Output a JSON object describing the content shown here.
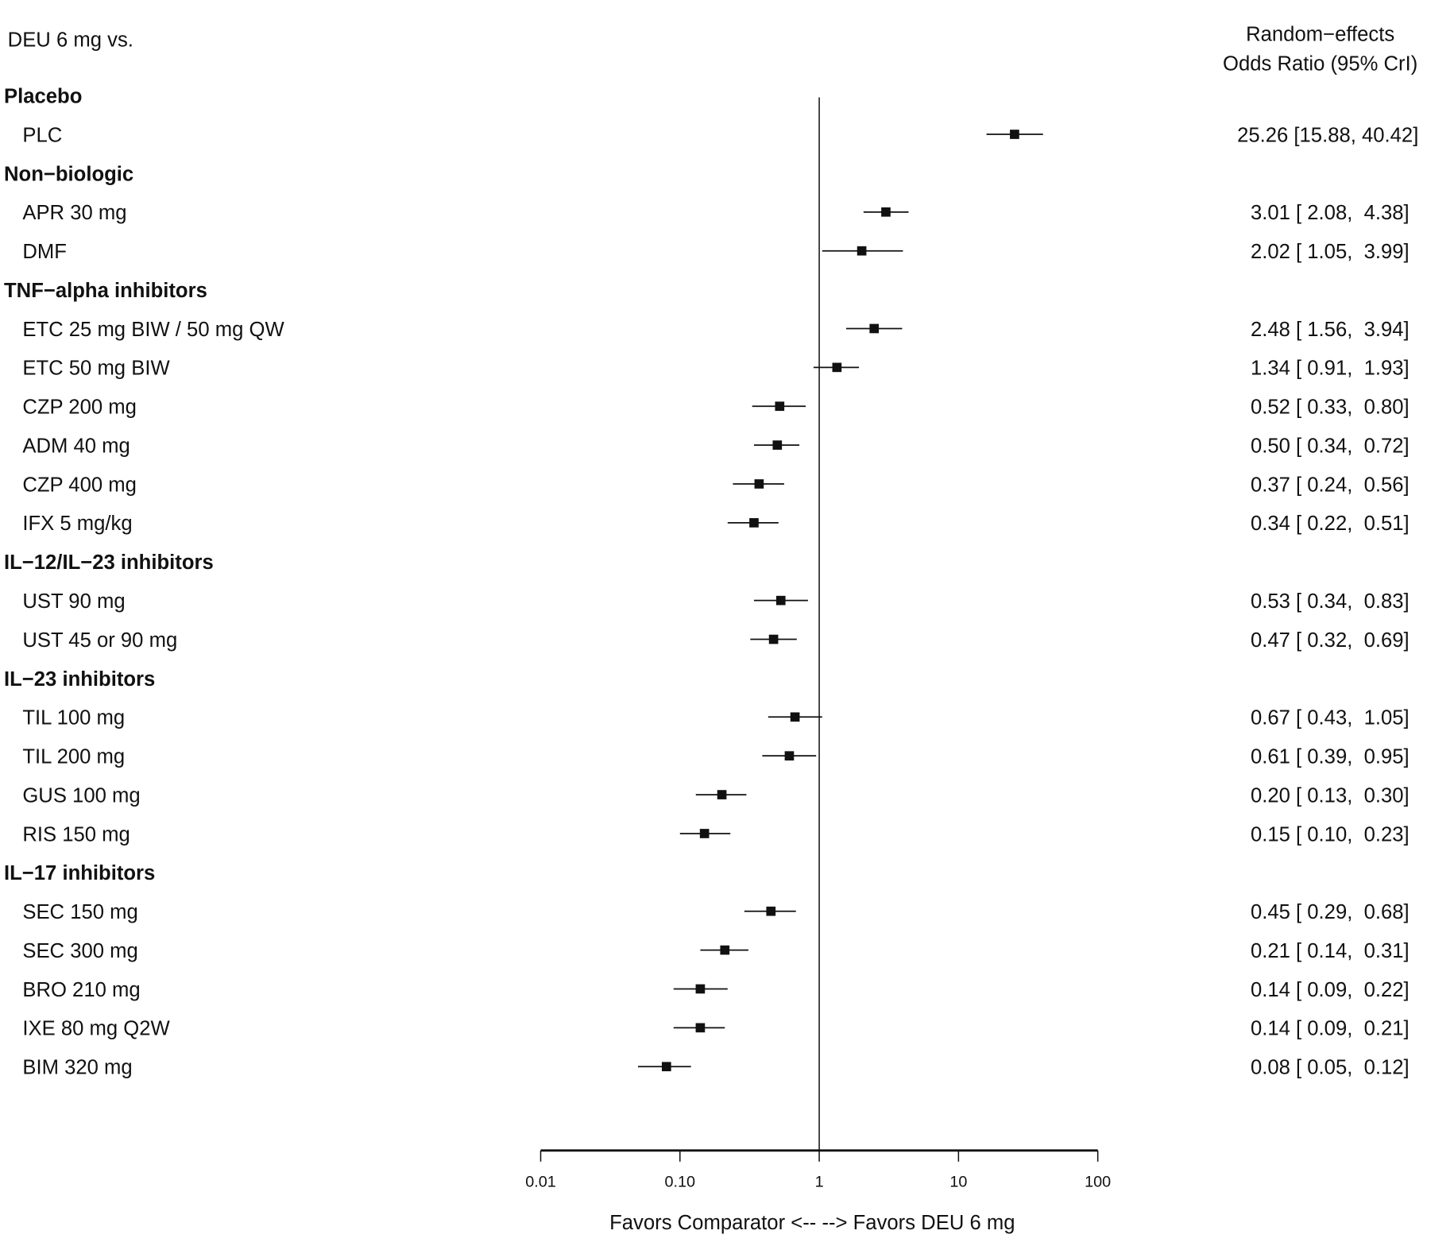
{
  "chart_data": {
    "type": "forest",
    "title": "DEU 6 mg vs.",
    "column_header": [
      "Random−effects",
      "Odds Ratio (95% CrI)"
    ],
    "xlabel": "Favors Comparator <-- --> Favors DEU 6 mg",
    "x_scale": "log",
    "xlim": [
      0.01,
      100
    ],
    "x_ticks": [
      0.01,
      0.1,
      1,
      10,
      100
    ],
    "x_tick_labels": [
      "0.01",
      "0.10",
      "1",
      "10",
      "100"
    ],
    "reference_line": 1,
    "grid": false,
    "rows": [
      {
        "label": "Placebo",
        "group": true
      },
      {
        "label": "PLC",
        "or": 25.26,
        "lo": 15.88,
        "hi": 40.42,
        "text": "25.26 [15.88, 40.42]"
      },
      {
        "label": "Non−biologic",
        "group": true
      },
      {
        "label": "APR 30 mg",
        "or": 3.01,
        "lo": 2.08,
        "hi": 4.38,
        "text": "3.01 [ 2.08,  4.38]"
      },
      {
        "label": "DMF",
        "or": 2.02,
        "lo": 1.05,
        "hi": 3.99,
        "text": "2.02 [ 1.05,  3.99]"
      },
      {
        "label": "TNF−alpha inhibitors",
        "group": true
      },
      {
        "label": "ETC 25 mg BIW / 50 mg QW",
        "or": 2.48,
        "lo": 1.56,
        "hi": 3.94,
        "text": "2.48 [ 1.56,  3.94]"
      },
      {
        "label": "ETC 50 mg BIW",
        "or": 1.34,
        "lo": 0.91,
        "hi": 1.93,
        "text": "1.34 [ 0.91,  1.93]"
      },
      {
        "label": "CZP 200 mg",
        "or": 0.52,
        "lo": 0.33,
        "hi": 0.8,
        "text": "0.52 [ 0.33,  0.80]"
      },
      {
        "label": "ADM 40 mg",
        "or": 0.5,
        "lo": 0.34,
        "hi": 0.72,
        "text": "0.50 [ 0.34,  0.72]"
      },
      {
        "label": "CZP 400 mg",
        "or": 0.37,
        "lo": 0.24,
        "hi": 0.56,
        "text": "0.37 [ 0.24,  0.56]"
      },
      {
        "label": "IFX 5 mg/kg",
        "or": 0.34,
        "lo": 0.22,
        "hi": 0.51,
        "text": "0.34 [ 0.22,  0.51]"
      },
      {
        "label": "IL−12/IL−23 inhibitors",
        "group": true
      },
      {
        "label": "UST 90 mg",
        "or": 0.53,
        "lo": 0.34,
        "hi": 0.83,
        "text": "0.53 [ 0.34,  0.83]"
      },
      {
        "label": "UST 45 or 90 mg",
        "or": 0.47,
        "lo": 0.32,
        "hi": 0.69,
        "text": "0.47 [ 0.32,  0.69]"
      },
      {
        "label": "IL−23 inhibitors",
        "group": true
      },
      {
        "label": "TIL 100 mg",
        "or": 0.67,
        "lo": 0.43,
        "hi": 1.05,
        "text": "0.67 [ 0.43,  1.05]"
      },
      {
        "label": "TIL 200 mg",
        "or": 0.61,
        "lo": 0.39,
        "hi": 0.95,
        "text": "0.61 [ 0.39,  0.95]"
      },
      {
        "label": "GUS 100 mg",
        "or": 0.2,
        "lo": 0.13,
        "hi": 0.3,
        "text": "0.20 [ 0.13,  0.30]"
      },
      {
        "label": "RIS 150 mg",
        "or": 0.15,
        "lo": 0.1,
        "hi": 0.23,
        "text": "0.15 [ 0.10,  0.23]"
      },
      {
        "label": "IL−17 inhibitors",
        "group": true
      },
      {
        "label": "SEC 150 mg",
        "or": 0.45,
        "lo": 0.29,
        "hi": 0.68,
        "text": "0.45 [ 0.29,  0.68]"
      },
      {
        "label": "SEC 300 mg",
        "or": 0.21,
        "lo": 0.14,
        "hi": 0.31,
        "text": "0.21 [ 0.14,  0.31]"
      },
      {
        "label": "BRO 210 mg",
        "or": 0.14,
        "lo": 0.09,
        "hi": 0.22,
        "text": "0.14 [ 0.09,  0.22]"
      },
      {
        "label": "IXE 80 mg Q2W",
        "or": 0.14,
        "lo": 0.09,
        "hi": 0.21,
        "text": "0.14 [ 0.09,  0.21]"
      },
      {
        "label": "BIM 320 mg",
        "or": 0.08,
        "lo": 0.05,
        "hi": 0.12,
        "text": "0.08 [ 0.05,  0.12]"
      }
    ]
  }
}
